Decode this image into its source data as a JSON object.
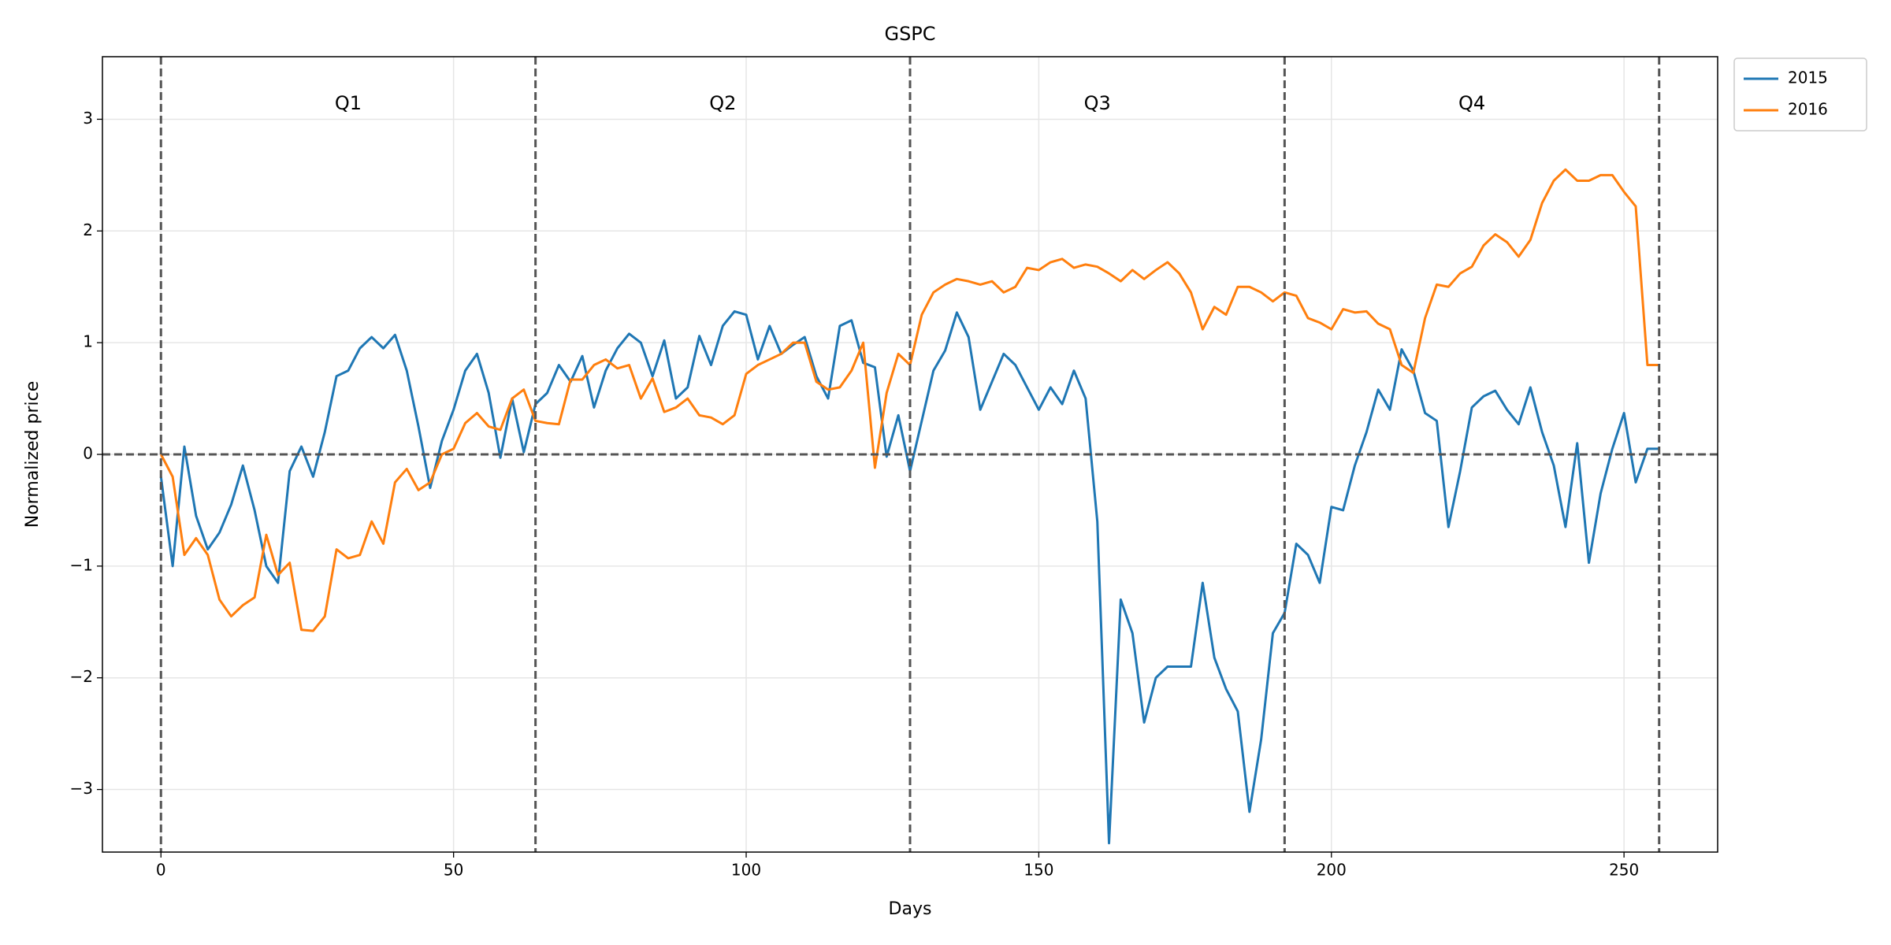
{
  "chart_data": {
    "type": "line",
    "title": "GSPC",
    "xlabel": "Days",
    "ylabel": "Normalized price",
    "x": [
      0,
      2,
      4,
      6,
      8,
      10,
      12,
      14,
      16,
      18,
      20,
      22,
      24,
      26,
      28,
      30,
      32,
      34,
      36,
      38,
      40,
      42,
      44,
      46,
      48,
      50,
      52,
      54,
      56,
      58,
      60,
      62,
      64,
      66,
      68,
      70,
      72,
      74,
      76,
      78,
      80,
      82,
      84,
      86,
      88,
      90,
      92,
      94,
      96,
      98,
      100,
      102,
      104,
      106,
      108,
      110,
      112,
      114,
      116,
      118,
      120,
      122,
      124,
      126,
      128,
      130,
      132,
      134,
      136,
      138,
      140,
      142,
      144,
      146,
      148,
      150,
      152,
      154,
      156,
      158,
      160,
      162,
      164,
      166,
      168,
      170,
      172,
      174,
      176,
      178,
      180,
      182,
      184,
      186,
      188,
      190,
      192,
      194,
      196,
      198,
      200,
      202,
      204,
      206,
      208,
      210,
      212,
      214,
      216,
      218,
      220,
      222,
      224,
      226,
      228,
      230,
      232,
      234,
      236,
      238,
      240,
      242,
      244,
      246,
      248,
      250,
      252,
      254,
      256
    ],
    "series": [
      {
        "name": "2015",
        "color": "#1f77b4",
        "values": [
          -0.2,
          -1.0,
          0.07,
          -0.55,
          -0.85,
          -0.7,
          -0.45,
          -0.1,
          -0.5,
          -1.0,
          -1.15,
          -0.15,
          0.07,
          -0.2,
          0.2,
          0.7,
          0.75,
          0.95,
          1.05,
          0.95,
          1.07,
          0.75,
          0.25,
          -0.3,
          0.12,
          0.4,
          0.75,
          0.9,
          0.55,
          -0.03,
          0.5,
          0.02,
          0.45,
          0.55,
          0.8,
          0.65,
          0.88,
          0.42,
          0.75,
          0.95,
          1.08,
          1.0,
          0.7,
          1.02,
          0.5,
          0.6,
          1.06,
          0.8,
          1.15,
          1.28,
          1.25,
          0.85,
          1.15,
          0.9,
          0.98,
          1.05,
          0.7,
          0.5,
          1.15,
          1.2,
          0.82,
          0.78,
          -0.02,
          0.35,
          -0.15,
          0.3,
          0.75,
          0.93,
          1.27,
          1.05,
          0.4,
          0.65,
          0.9,
          0.8,
          0.6,
          0.4,
          0.6,
          0.45,
          0.75,
          0.5,
          -0.6,
          -3.48,
          -1.3,
          -1.6,
          -2.4,
          -2.0,
          -1.9,
          -1.9,
          -1.9,
          -1.15,
          -1.82,
          -2.1,
          -2.3,
          -3.2,
          -2.55,
          -1.6,
          -1.42,
          -0.8,
          -0.9,
          -1.15,
          -0.47,
          -0.5,
          -0.1,
          0.2,
          0.58,
          0.4,
          0.94,
          0.75,
          0.37,
          0.3,
          -0.65,
          -0.15,
          0.42,
          0.52,
          0.57,
          0.4,
          0.27,
          0.6,
          0.2,
          -0.1,
          -0.65,
          0.1,
          -0.97,
          -0.35,
          0.05,
          0.37,
          -0.25,
          0.05,
          0.05
        ]
      },
      {
        "name": "2016",
        "color": "#ff7f0e",
        "values": [
          0.0,
          -0.2,
          -0.9,
          -0.75,
          -0.9,
          -1.3,
          -1.45,
          -1.35,
          -1.28,
          -0.72,
          -1.08,
          -0.97,
          -1.57,
          -1.58,
          -1.45,
          -0.85,
          -0.93,
          -0.9,
          -0.6,
          -0.8,
          -0.25,
          -0.13,
          -0.32,
          -0.25,
          0.0,
          0.05,
          0.28,
          0.37,
          0.25,
          0.22,
          0.5,
          0.58,
          0.3,
          0.28,
          0.27,
          0.67,
          0.67,
          0.8,
          0.85,
          0.77,
          0.8,
          0.5,
          0.68,
          0.38,
          0.42,
          0.5,
          0.35,
          0.33,
          0.27,
          0.35,
          0.72,
          0.8,
          0.85,
          0.9,
          1.0,
          1.0,
          0.65,
          0.58,
          0.6,
          0.75,
          1.0,
          -0.12,
          0.55,
          0.9,
          0.8,
          1.25,
          1.45,
          1.52,
          1.57,
          1.55,
          1.52,
          1.55,
          1.45,
          1.5,
          1.67,
          1.65,
          1.72,
          1.75,
          1.67,
          1.7,
          1.68,
          1.62,
          1.55,
          1.65,
          1.57,
          1.65,
          1.72,
          1.62,
          1.45,
          1.12,
          1.32,
          1.25,
          1.5,
          1.5,
          1.45,
          1.37,
          1.45,
          1.42,
          1.22,
          1.18,
          1.12,
          1.3,
          1.27,
          1.28,
          1.17,
          1.12,
          0.8,
          0.73,
          1.22,
          1.52,
          1.5,
          1.62,
          1.68,
          1.87,
          1.97,
          1.9,
          1.77,
          1.92,
          2.25,
          2.45,
          2.55,
          2.45,
          2.45,
          2.5,
          2.5,
          2.35,
          2.22,
          0.8,
          0.8
        ]
      }
    ],
    "vlines": [
      0,
      64,
      128,
      192,
      256
    ],
    "hlines": [
      0
    ],
    "quarters": [
      "Q1",
      "Q2",
      "Q3",
      "Q4"
    ],
    "xlim": [
      -10,
      266
    ],
    "xticks": [
      0,
      50,
      100,
      150,
      200,
      250
    ],
    "ylim": [
      -3.56,
      3.56
    ],
    "yticks": [
      {
        "value": -3,
        "label": "−3"
      },
      {
        "value": -2,
        "label": "−2"
      },
      {
        "value": -1,
        "label": "−1"
      },
      0,
      1,
      2,
      3
    ],
    "grid": true,
    "legend": "outside upper right"
  }
}
